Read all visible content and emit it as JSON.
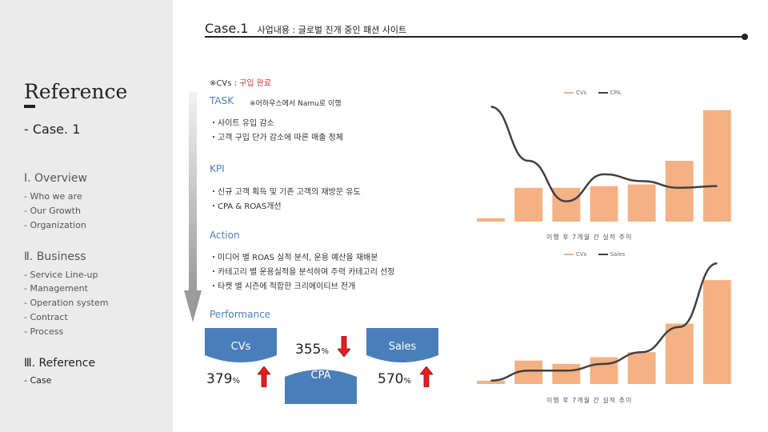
{
  "sidebar": {
    "title": "Reference",
    "subtitle": "- Case. 1",
    "sections": [
      {
        "heading": "Ⅰ. Overview",
        "items": [
          "- Who we are",
          "- Our Growth",
          "- Organization"
        ]
      },
      {
        "heading": "Ⅱ. Business",
        "items": [
          "- Service Line-up",
          "- Management",
          "- Operation system",
          "- Contract",
          "- Process"
        ]
      },
      {
        "heading": "Ⅲ. Reference",
        "items": [
          "- Case"
        ]
      }
    ]
  },
  "header": {
    "case": "Case.1",
    "desc": "사업내용 : 글로벌 진개 중인 패션 사이트"
  },
  "content": {
    "cvs_note_prefix": "※CVs : ",
    "cvs_note_value": "구입 완료",
    "task_label": "TASK",
    "task_note": "※어하우스에서 Namu로 이행",
    "task_items": [
      "・사이트 유입 감소",
      "・고객 구입 단가 감소에 따른 매출 정체"
    ],
    "kpi_label": "KPI",
    "kpi_items": [
      "・신규 고객 획득 및 기존 고객의 재방문 유도",
      "・CPA & ROAS개선"
    ],
    "action_label": "Action",
    "action_items": [
      "・미디어 별 ROAS 실적 분석, 운용 예산을 재배분",
      "・카테고리 별 운용실적을 분석하여 주력 카테고리 선정",
      "・타켓 별 시즌에 적합한 크리에이티브 전개"
    ],
    "performance_label": "Performance"
  },
  "performance": {
    "cvs_label": "CVs",
    "cvs_value": "379",
    "cpa_label": "CPA",
    "cpa_value": "355",
    "sales_label": "Sales",
    "sales_value": "570",
    "pct": "%"
  },
  "colors": {
    "bar": "#f4b183",
    "line": "#404040",
    "up": "#e02020",
    "down": "#e02020",
    "accent": "#4a7ebb"
  },
  "chart_data": [
    {
      "type": "bar",
      "caption": "이행 후 7개월 간 실적 추이",
      "legend": "top-right",
      "series": [
        {
          "name": "CVs",
          "kind": "bar",
          "values": [
            1,
            10,
            10,
            10.5,
            11,
            18,
            33
          ]
        },
        {
          "name": "CPA",
          "kind": "line",
          "values": [
            34,
            18,
            6,
            14,
            12,
            10,
            10.5
          ]
        }
      ],
      "ylim": [
        0,
        36
      ]
    },
    {
      "type": "bar",
      "caption": "이행 후 7개월 간 실적 추이",
      "legend": "top-right",
      "series": [
        {
          "name": "CVs",
          "kind": "bar",
          "values": [
            1,
            7,
            6,
            8,
            9.5,
            18,
            31
          ]
        },
        {
          "name": "Sales",
          "kind": "line",
          "values": [
            1,
            4,
            4,
            6,
            9.5,
            17,
            36
          ]
        }
      ],
      "ylim": [
        0,
        37
      ]
    }
  ]
}
